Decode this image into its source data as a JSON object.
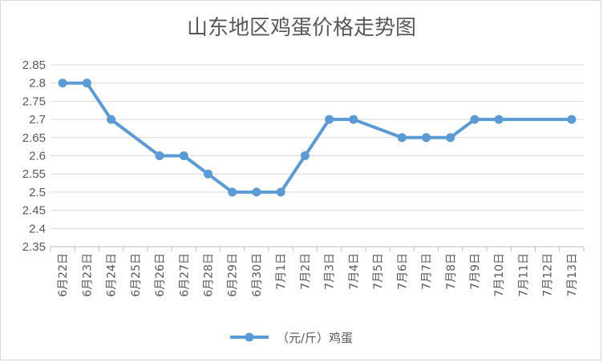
{
  "chart_data": {
    "type": "line",
    "title": "山东地区鸡蛋价格走势图",
    "categories": [
      "6月22日",
      "6月23日",
      "6月24日",
      "6月25日",
      "6月26日",
      "6月27日",
      "6月28日",
      "6月29日",
      "6月30日",
      "7月1日",
      "7月2日",
      "7月3日",
      "7月4日",
      "7月5日",
      "7月6日",
      "7月7日",
      "7月8日",
      "7月9日",
      "7月10日",
      "7月11日",
      "7月12日",
      "7月13日"
    ],
    "series": [
      {
        "name": "（元/斤）鸡蛋",
        "color": "#5b9bd5",
        "values": [
          2.8,
          2.8,
          2.7,
          null,
          2.6,
          2.6,
          2.55,
          2.5,
          2.5,
          2.5,
          2.6,
          2.7,
          2.7,
          null,
          2.65,
          2.65,
          2.65,
          2.7,
          2.7,
          null,
          null,
          2.7
        ]
      }
    ],
    "ylim": [
      2.35,
      2.85
    ],
    "yticks": [
      "2.85",
      "2.8",
      "2.75",
      "2.7",
      "2.65",
      "2.6",
      "2.55",
      "2.5",
      "2.45",
      "2.4",
      "2.35"
    ],
    "grid": true,
    "legend_position": "bottom"
  }
}
